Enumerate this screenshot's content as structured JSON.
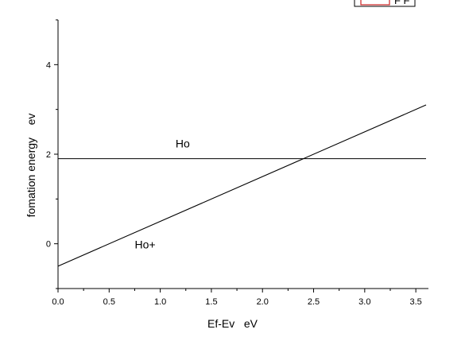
{
  "chart_data": {
    "type": "line",
    "xlabel": "Ef-Ev   eV",
    "ylabel": "fomation energy    ev",
    "xlim": [
      0,
      3.6
    ],
    "ylim": [
      -1,
      5
    ],
    "x_ticks": [
      0.0,
      0.5,
      1.0,
      1.5,
      2.0,
      2.5,
      3.0,
      3.5
    ],
    "x_tick_labels": [
      "0.0",
      "0.5",
      "1.0",
      "1.5",
      "2.0",
      "2.5",
      "3.0",
      "3.5"
    ],
    "y_ticks": [
      0,
      2,
      4
    ],
    "y_tick_labels": [
      "0",
      "2",
      "4"
    ],
    "grid": false,
    "series": [
      {
        "x": [
          0,
          3.6
        ],
        "y": [
          1.9,
          1.9
        ],
        "color": "#000000"
      },
      {
        "x": [
          0,
          3.6
        ],
        "y": [
          -0.5,
          3.1
        ],
        "color": "#000000"
      }
    ],
    "annotations": [
      {
        "text": "Ho",
        "x": 1.15,
        "y": 2.15
      },
      {
        "text": "Ho+",
        "x": 0.75,
        "y": -0.1
      }
    ],
    "legend": {
      "placement": "top-right",
      "entry_text": "F F",
      "swatch_color": "#cc2222"
    }
  }
}
